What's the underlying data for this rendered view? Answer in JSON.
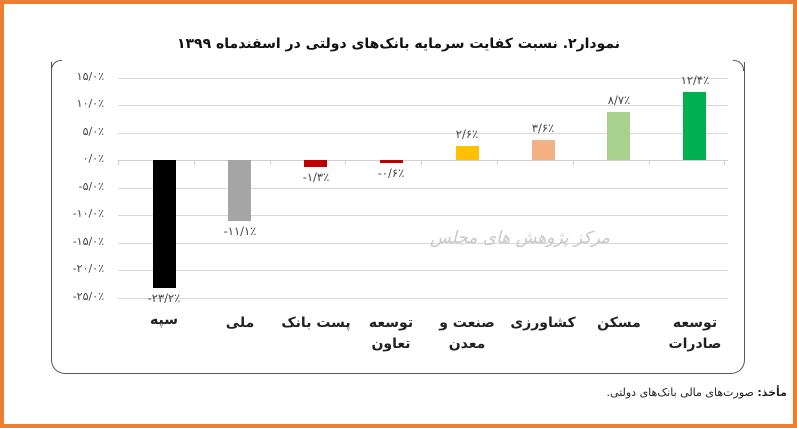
{
  "title": "نمودار۲. نسبت کفایت سرمایه بانک‌های دولتی در اسفندماه ۱۳۹۹",
  "watermark": "مرکز پژوهش های مجلس",
  "source": {
    "label": "مأخذ:",
    "text": " صورت‌های مالی بانک‌های دولتی."
  },
  "colors": {
    "frame_border": "#ED7D31"
  },
  "y_axis": {
    "ticks": [
      {
        "value": 15,
        "label": "۱۵/۰٪"
      },
      {
        "value": 10,
        "label": "۱۰/۰٪"
      },
      {
        "value": 5,
        "label": "۵/۰٪"
      },
      {
        "value": 0,
        "label": "۰/۰٪"
      },
      {
        "value": -5,
        "label": "-۵/۰٪"
      },
      {
        "value": -10,
        "label": "-۱۰/۰٪"
      },
      {
        "value": -15,
        "label": "-۱۵/۰٪"
      },
      {
        "value": -20,
        "label": "-۲۰/۰٪"
      },
      {
        "value": -25,
        "label": "-۲۵/۰٪"
      }
    ]
  },
  "bars": [
    {
      "category": "سپه",
      "value": -23.2,
      "label": "-۲۳/۲٪",
      "color": "#000000"
    },
    {
      "category": "ملی",
      "value": -11.1,
      "label": "-۱۱/۱٪",
      "color": "#A5A5A5"
    },
    {
      "category": "پست بانک",
      "value": -1.3,
      "label": "-۱/۳٪",
      "color": "#C00000"
    },
    {
      "category": "توسعه تعاون",
      "value": -0.6,
      "label": "-۰/۶٪",
      "color": "#C00000"
    },
    {
      "category": "صنعت و معدن",
      "value": 2.6,
      "label": "۲/۶٪",
      "color": "#FFC000"
    },
    {
      "category": "کشاورزی",
      "value": 3.6,
      "label": "۳/۶٪",
      "color": "#F4B183"
    },
    {
      "category": "مسکن",
      "value": 8.7,
      "label": "۸/۷٪",
      "color": "#A9D18E"
    },
    {
      "category": "توسعه صادرات",
      "value": 12.4,
      "label": "۱۲/۴٪",
      "color": "#00B050"
    }
  ],
  "chart_data": {
    "type": "bar",
    "title": "نمودار۲. نسبت کفایت سرمایه بانک‌های دولتی در اسفندماه ۱۳۹۹",
    "categories": [
      "سپه",
      "ملی",
      "پست بانک",
      "توسعه تعاون",
      "صنعت و معدن",
      "کشاورزی",
      "مسکن",
      "توسعه صادرات"
    ],
    "values": [
      -23.2,
      -11.1,
      -1.3,
      -0.6,
      2.6,
      3.6,
      8.7,
      12.4
    ],
    "data_labels": [
      "-۲۳/۲٪",
      "-۱۱/۱٪",
      "-۱/۳٪",
      "-۰/۶٪",
      "۲/۶٪",
      "۳/۶٪",
      "۸/۷٪",
      "۱۲/۴٪"
    ],
    "bar_colors": [
      "#000000",
      "#A5A5A5",
      "#C00000",
      "#C00000",
      "#FFC000",
      "#F4B183",
      "#A9D18E",
      "#00B050"
    ],
    "xlabel": "",
    "ylabel": "",
    "ylim": [
      -25,
      15
    ],
    "y_ticks": [
      15,
      10,
      5,
      0,
      -5,
      -10,
      -15,
      -20,
      -25
    ],
    "y_tick_labels": [
      "۱۵/۰٪",
      "۱۰/۰٪",
      "۵/۰٪",
      "۰/۰٪",
      "-۵/۰٪",
      "-۱۰/۰٪",
      "-۱۵/۰٪",
      "-۲۰/۰٪",
      "-۲۵/۰٪"
    ],
    "grid": true,
    "legend": "none",
    "unit": "%",
    "annotations": [
      "مرکز پژوهش های مجلس (watermark)"
    ],
    "source_note": "مأخذ: صورت‌های مالی بانک‌های دولتی."
  }
}
